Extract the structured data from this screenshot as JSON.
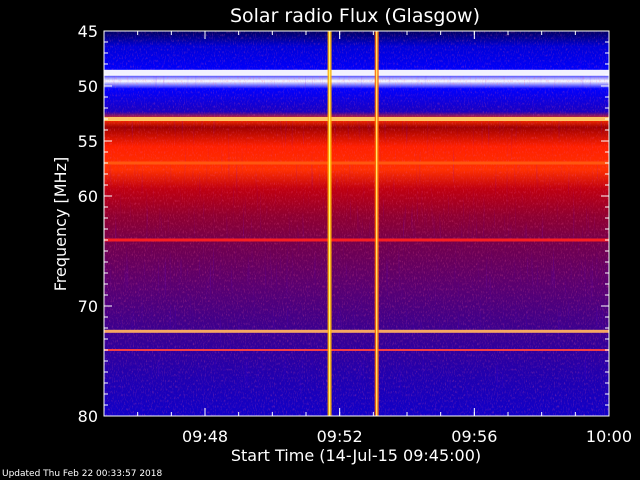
{
  "chart_data": {
    "type": "heatmap",
    "title": "Solar radio Flux (Glasgow)",
    "xlabel": "Start Time (14-Jul-15 09:45:00)",
    "ylabel": "Frequency [MHz]",
    "x_range_minutes": [
      0,
      15
    ],
    "x_ticks": [
      {
        "minute": 3,
        "label": "09:48"
      },
      {
        "minute": 7,
        "label": "09:52"
      },
      {
        "minute": 11,
        "label": "09:56"
      },
      {
        "minute": 15,
        "label": "10:00"
      }
    ],
    "y_range_mhz": [
      45,
      80
    ],
    "y_ticks": [
      {
        "mhz": 45,
        "label": "45"
      },
      {
        "mhz": 50,
        "label": "50"
      },
      {
        "mhz": 55,
        "label": "55"
      },
      {
        "mhz": 60,
        "label": "60"
      },
      {
        "mhz": 70,
        "label": "70"
      },
      {
        "mhz": 80,
        "label": "80"
      }
    ],
    "colormap": [
      "#000000",
      "#0000ff",
      "#ff0000",
      "#ffff00",
      "#ffffff"
    ],
    "background": "#000000",
    "frame_color": "#ffffff",
    "text_color": "#ffffff",
    "horizontal_interference_mhz": [
      48.8,
      53,
      57,
      64,
      72.3,
      74
    ],
    "vertical_bursts_minutes": [
      6.7,
      8.1
    ]
  },
  "footer": {
    "updated": "Updated Thu Feb 22 00:33:57 2018"
  }
}
